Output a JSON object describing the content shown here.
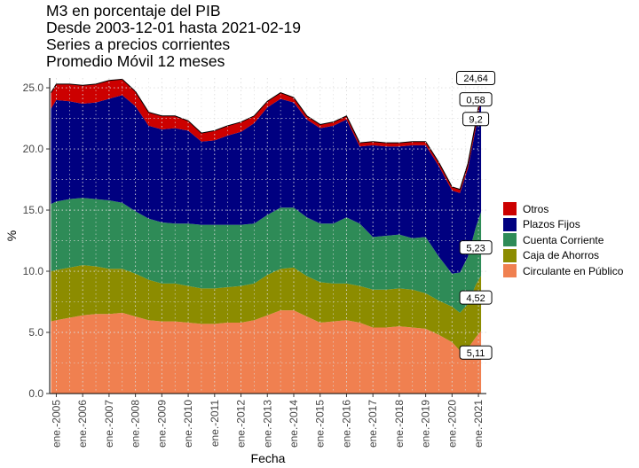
{
  "chart_data": {
    "type": "area",
    "stacked": true,
    "title_lines": [
      "M3 en porcentaje del PIB",
      "Desde 2003-12-01 hasta 2021-02-19",
      "Series a precios corrientes",
      "Promedio Móvil 12 meses"
    ],
    "xlabel": "Fecha",
    "ylabel": "%",
    "ylim": [
      0,
      25.8
    ],
    "yticks": [
      0,
      5,
      10,
      15,
      20,
      25
    ],
    "ytick_labels": [
      "0.0",
      "5.0",
      "10.0",
      "15.0",
      "20.0",
      "25.0"
    ],
    "xlim": [
      2004.75,
      2021.3
    ],
    "xticks": [
      2005,
      2006,
      2007,
      2008,
      2009,
      2010,
      2011,
      2012,
      2013,
      2014,
      2015,
      2016,
      2017,
      2018,
      2019,
      2020,
      2021
    ],
    "xtick_labels": [
      "ene.-2005",
      "ene.-2006",
      "ene.-2007",
      "ene.-2008",
      "ene.-2009",
      "ene.-2010",
      "ene.-2011",
      "ene.-2012",
      "ene.-2013",
      "ene.-2014",
      "ene.-2015",
      "ene.-2016",
      "ene.-2017",
      "ene.-2018",
      "ene.-2019",
      "ene.-2020",
      "ene.-2021"
    ],
    "grid": "dotted",
    "legend_position": "right",
    "x": [
      2004.8,
      2005.0,
      2005.5,
      2006.0,
      2006.5,
      2007.0,
      2007.5,
      2008.0,
      2008.5,
      2009.0,
      2009.5,
      2010.0,
      2010.5,
      2011.0,
      2011.5,
      2012.0,
      2012.5,
      2013.0,
      2013.5,
      2014.0,
      2014.5,
      2015.0,
      2015.5,
      2016.0,
      2016.5,
      2017.0,
      2017.5,
      2018.0,
      2018.5,
      2019.0,
      2019.5,
      2020.0,
      2020.3,
      2020.6,
      2020.9,
      2021.1
    ],
    "series": [
      {
        "name": "Circulante en Público",
        "color": "#F08050",
        "values": [
          5.9,
          6.0,
          6.2,
          6.4,
          6.5,
          6.5,
          6.6,
          6.3,
          6.0,
          5.9,
          5.9,
          5.8,
          5.7,
          5.7,
          5.8,
          5.8,
          6.0,
          6.4,
          6.8,
          6.8,
          6.3,
          5.8,
          5.9,
          6.0,
          5.8,
          5.4,
          5.4,
          5.5,
          5.4,
          5.3,
          4.8,
          4.2,
          3.5,
          3.7,
          4.6,
          5.11
        ]
      },
      {
        "name": "Caja de Ahorros",
        "color": "#8C8C00",
        "values": [
          4.1,
          4.1,
          4.1,
          4.1,
          3.9,
          3.7,
          3.6,
          3.5,
          3.3,
          3.1,
          3.1,
          3.0,
          2.9,
          2.9,
          2.9,
          3.0,
          3.0,
          3.3,
          3.4,
          3.5,
          3.3,
          3.3,
          3.1,
          3.0,
          3.0,
          3.1,
          3.1,
          3.1,
          3.1,
          2.9,
          2.8,
          2.9,
          3.1,
          3.6,
          4.3,
          4.52
        ]
      },
      {
        "name": "Cuenta Corriente",
        "color": "#2E8B57",
        "values": [
          5.5,
          5.6,
          5.6,
          5.5,
          5.5,
          5.6,
          5.4,
          5.1,
          5.0,
          5.0,
          4.9,
          5.1,
          5.2,
          5.2,
          5.1,
          5.0,
          4.9,
          4.9,
          5.0,
          4.9,
          4.8,
          4.8,
          4.9,
          5.4,
          5.1,
          4.3,
          4.4,
          4.4,
          4.2,
          4.6,
          3.6,
          2.7,
          3.3,
          3.9,
          4.7,
          5.23
        ]
      },
      {
        "name": "Plazos Fijos",
        "color": "#000080",
        "values": [
          7.8,
          8.3,
          8.0,
          7.7,
          7.9,
          8.3,
          8.8,
          8.6,
          7.6,
          7.6,
          7.8,
          7.6,
          6.8,
          6.9,
          7.3,
          7.6,
          8.2,
          8.8,
          8.9,
          8.6,
          8.0,
          7.8,
          8.0,
          8.0,
          6.3,
          7.5,
          7.3,
          7.2,
          7.6,
          7.5,
          7.4,
          6.8,
          6.5,
          7.2,
          8.1,
          9.2
        ]
      },
      {
        "name": "Otros",
        "color": "#CC0000",
        "values": [
          1.3,
          1.3,
          1.4,
          1.5,
          1.5,
          1.5,
          1.3,
          1.2,
          1.1,
          1.1,
          1.0,
          0.8,
          0.7,
          0.8,
          0.8,
          0.8,
          0.6,
          0.5,
          0.5,
          0.4,
          0.3,
          0.3,
          0.3,
          0.3,
          0.3,
          0.3,
          0.3,
          0.3,
          0.3,
          0.3,
          0.3,
          0.3,
          0.3,
          0.4,
          0.5,
          0.58
        ]
      }
    ],
    "annotations": [
      {
        "text": "24,64",
        "x": 2021.0,
        "y": 25.8
      },
      {
        "text": "0,58",
        "x": 2021.0,
        "y": 24.05
      },
      {
        "text": "9,2",
        "x": 2021.0,
        "y": 22.45
      },
      {
        "text": "5,23",
        "x": 2021.0,
        "y": 11.95
      },
      {
        "text": "4,52",
        "x": 2021.0,
        "y": 7.85
      },
      {
        "text": "5,11",
        "x": 2021.0,
        "y": 3.35
      }
    ]
  }
}
